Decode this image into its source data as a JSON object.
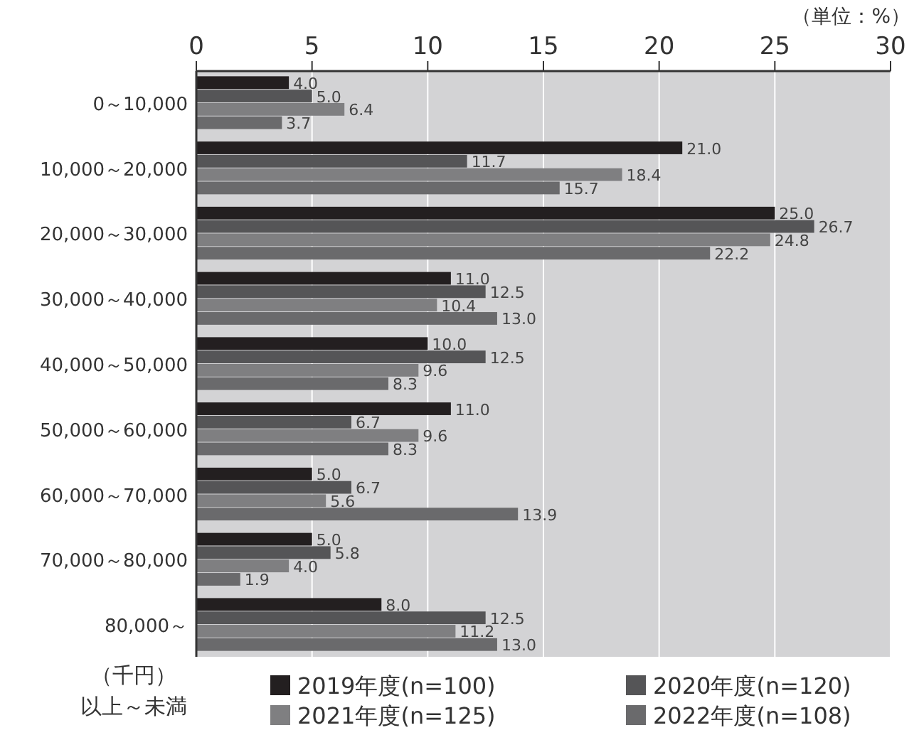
{
  "chart_data": {
    "type": "bar",
    "orientation": "horizontal",
    "categories": [
      "0～10,000",
      "10,000～20,000",
      "20,000～30,000",
      "30,000～40,000",
      "40,000～50,000",
      "50,000～60,000",
      "60,000～70,000",
      "70,000～80,000",
      "80,000～"
    ],
    "series": [
      {
        "name": "2019年度(n=100)",
        "color": "#231f20",
        "values": [
          4.0,
          21.0,
          25.0,
          11.0,
          10.0,
          11.0,
          5.0,
          5.0,
          8.0
        ],
        "value_labels": [
          "4.0",
          "21.0",
          "25.0",
          "11.0",
          "10.0",
          "11.0",
          "5.0",
          "5.0",
          "8.0"
        ]
      },
      {
        "name": "2020年度(n=120)",
        "color": "#555557",
        "values": [
          5.0,
          11.7,
          26.7,
          12.5,
          12.5,
          6.7,
          6.7,
          5.8,
          12.5
        ],
        "value_labels": [
          "5.0",
          "11.7",
          "26.7",
          "12.5",
          "12.5",
          "6.7",
          "6.7",
          "5.8",
          "12.5"
        ]
      },
      {
        "name": "2021年度(n=125)",
        "color": "#7f7f81",
        "values": [
          6.4,
          18.4,
          24.8,
          10.4,
          9.6,
          9.6,
          5.6,
          4.0,
          11.2
        ],
        "value_labels": [
          "6.4",
          "18.4",
          "24.8",
          "10.4",
          "9.6",
          "9.6",
          "5.6",
          "4.0",
          "11.2"
        ]
      },
      {
        "name": "2022年度(n=108)",
        "color": "#6a6a6c",
        "values": [
          3.7,
          15.7,
          22.2,
          13.0,
          8.3,
          8.3,
          13.9,
          1.9,
          13.0
        ],
        "value_labels": [
          "3.7",
          "15.7",
          "22.2",
          "13.0",
          "8.3",
          "8.3",
          "13.9",
          "1.9",
          "13.0"
        ]
      }
    ],
    "xlim": [
      0,
      30
    ],
    "xticks": [
      0,
      5,
      10,
      15,
      20,
      25,
      30
    ],
    "grid": "x",
    "legend": "bottom",
    "annotations": [
      "（単位：%）",
      "（千円）",
      "以上～未満"
    ]
  }
}
